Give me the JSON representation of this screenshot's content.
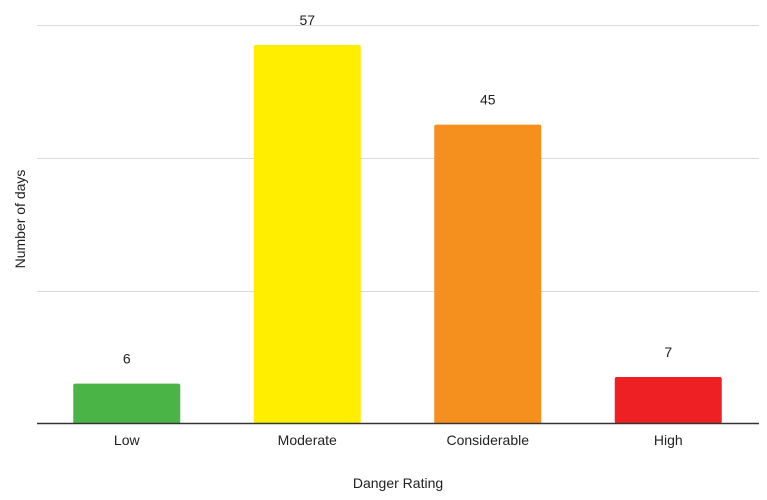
{
  "chart_data": {
    "type": "bar",
    "title": "",
    "xlabel": "Danger Rating",
    "ylabel": "Number of days",
    "categories": [
      "Low",
      "Moderate",
      "Considerable",
      "High"
    ],
    "values": [
      6,
      57,
      45,
      7
    ],
    "bar_colors": [
      "#4ab447",
      "#ffee00",
      "#f5901f",
      "#ee2024"
    ],
    "ylim": [
      0,
      60
    ],
    "gridlines": [
      0,
      20,
      40,
      60
    ],
    "grid": true,
    "y_tick_labels_visible": false,
    "data_labels": true,
    "legend": "none",
    "background": "#ffffff",
    "gridline_color": "#d9d9d9",
    "baseline_color": "#333333"
  }
}
